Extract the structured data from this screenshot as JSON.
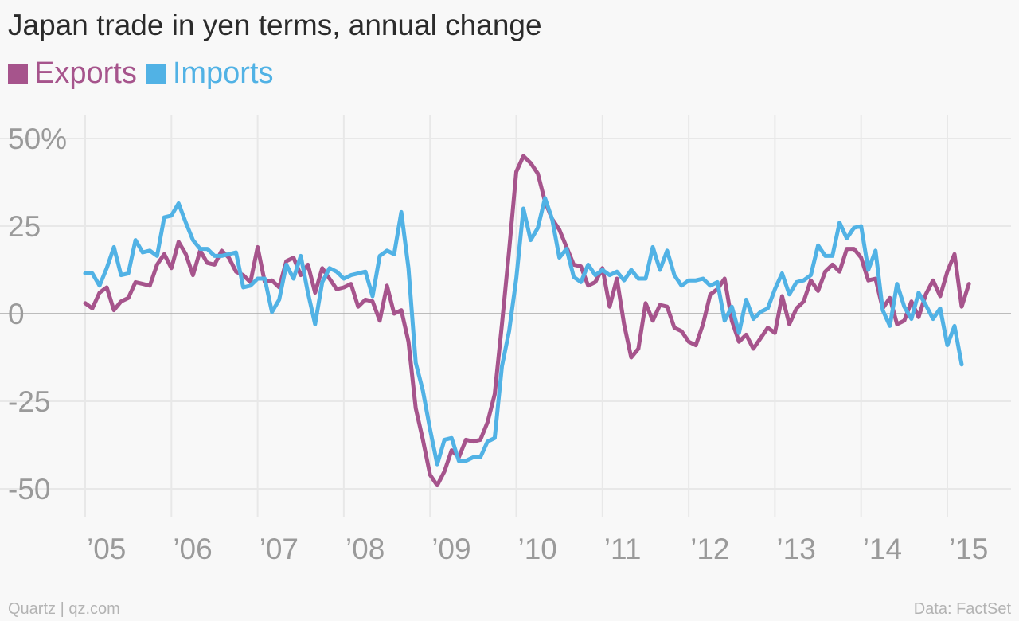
{
  "chart_data": {
    "type": "line",
    "title": "Japan trade in yen terms, annual change",
    "x_start": "2005-01",
    "x_frequency": "monthly",
    "y_ticks": [
      "50%",
      "25",
      "0",
      "-25",
      "-50"
    ],
    "y_tick_values": [
      50,
      25,
      0,
      -25,
      -50
    ],
    "x_ticks": [
      "’05",
      "’06",
      "’07",
      "’08",
      "’09",
      "’10",
      "’11",
      "’12",
      "’13",
      "’14",
      "’15"
    ],
    "ylim": [
      -55,
      55
    ],
    "grid": true,
    "legend_position": "top-left",
    "series": [
      {
        "name": "Exports",
        "color": "#a6548c",
        "values": [
          3,
          1.5,
          6,
          7.5,
          1,
          3.5,
          4.5,
          9,
          8.5,
          8,
          14,
          17,
          13,
          20.5,
          17,
          11,
          18,
          14.5,
          14,
          18,
          16,
          12,
          11,
          9,
          19,
          9,
          9.5,
          7.5,
          15,
          16,
          11,
          14,
          6,
          13,
          10,
          7,
          7.5,
          8.5,
          2,
          4,
          3.5,
          -2,
          8,
          0,
          1,
          -8,
          -27,
          -36,
          -46,
          -49,
          -45,
          -39,
          -41,
          -36,
          -36.5,
          -36,
          -31,
          -23,
          -3,
          18,
          40.5,
          45,
          43,
          40,
          32,
          27,
          24,
          19,
          14,
          13.5,
          8,
          9,
          13,
          2,
          10,
          -3,
          -12.5,
          -10,
          3,
          -2,
          2.5,
          2,
          -4,
          -5,
          -8,
          -9,
          -3,
          5.5,
          7,
          10,
          -2,
          -8,
          -6,
          -10,
          -7,
          -4,
          -5.5,
          5,
          -3,
          1.5,
          3.5,
          9.5,
          6.5,
          12,
          14,
          12,
          18.5,
          18.5,
          16,
          9.5,
          10,
          1.5,
          4.5,
          -3,
          -2,
          3.5,
          -1,
          5.5,
          9.5,
          5,
          12,
          17,
          2,
          8.5
        ],
        "shown_values_note": ""
      },
      {
        "name": "Imports",
        "color": "#51b2e5",
        "values": [
          11.5,
          11.5,
          8,
          13,
          19,
          11,
          11.5,
          21,
          17.5,
          18,
          16.5,
          27.5,
          28,
          31.5,
          26,
          21,
          18.5,
          18.5,
          16.5,
          16.5,
          17,
          17.5,
          7.5,
          8,
          10,
          10,
          0.5,
          4,
          14,
          10,
          16.5,
          6,
          -3,
          9,
          13,
          12,
          10,
          11,
          11.5,
          12,
          5,
          16.5,
          18,
          17,
          29,
          13,
          -14,
          -22,
          -33,
          -43,
          -36,
          -35.5,
          -42,
          -42,
          -41,
          -41,
          -36.5,
          -35.5,
          -15,
          -5,
          10,
          30,
          21,
          24.5,
          33,
          27,
          16,
          18.5,
          10.5,
          9,
          14,
          11,
          12.5,
          11,
          12,
          9.5,
          12.5,
          10,
          10,
          19,
          12.5,
          18,
          11,
          8,
          9.5,
          9.5,
          10,
          8,
          9,
          -2,
          2,
          -5.5,
          4,
          -1.5,
          0.5,
          1.5,
          7,
          11.5,
          5.5,
          9,
          9.5,
          11,
          19.5,
          16.5,
          16.5,
          26,
          21.5,
          24.5,
          25,
          12.5,
          18,
          1,
          -3.5,
          8.5,
          2,
          -1.5,
          6,
          2.5,
          -1.5,
          1.5,
          -9,
          -3.5,
          -14.5
        ]
      }
    ]
  },
  "footer": {
    "source_left": "Quartz | qz.com",
    "source_right": "Data: FactSet"
  }
}
